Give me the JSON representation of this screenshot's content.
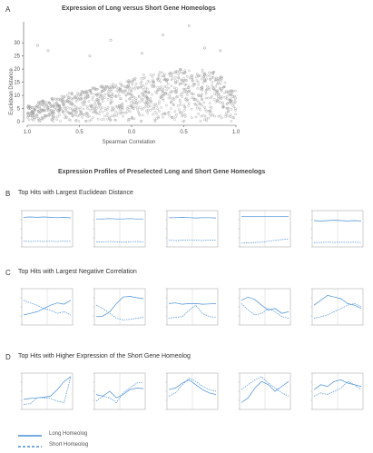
{
  "panels": [
    {
      "letter": "A",
      "title": "Expression of Long versus Short Gene Homeologs"
    },
    {
      "title": "Expression Profiles of Preselected Long and Short Gene Homeologs"
    },
    {
      "letter": "B",
      "title": "Top Hits with Largest Euclidean Distance"
    },
    {
      "letter": "C",
      "title": "Top Hits with Largest Negative Correlation"
    },
    {
      "letter": "D",
      "title": "Top Hits with Higher Expression of the Short Gene Homeolog"
    }
  ],
  "legend": {
    "long": "Long Homeolog",
    "short": "Short Homeolog",
    "long_color": "#4a90d9",
    "short_color": "#4a90d9"
  },
  "chart_data": [
    {
      "type": "scatter",
      "xlabel": "Spearman Correlation",
      "ylabel": "Euclidean Distance",
      "x_ticks": [
        "1.0",
        "0.5",
        "0.0",
        "0.5",
        "1.0"
      ],
      "y_ticks": [
        "0",
        "5",
        "10",
        "15",
        "20",
        "25",
        "30"
      ],
      "xlim": [
        -1.0,
        1.0
      ],
      "ylim": [
        0,
        38
      ],
      "grid": false,
      "marker_color": "#9a9a9a",
      "density_profile": [
        [
          -0.95,
          6
        ],
        [
          -0.85,
          8
        ],
        [
          -0.75,
          9
        ],
        [
          -0.65,
          10
        ],
        [
          -0.55,
          11
        ],
        [
          -0.45,
          12
        ],
        [
          -0.35,
          13
        ],
        [
          -0.25,
          14
        ],
        [
          -0.15,
          15
        ],
        [
          -0.05,
          16
        ],
        [
          0.05,
          17
        ],
        [
          0.15,
          18
        ],
        [
          0.25,
          19
        ],
        [
          0.35,
          19
        ],
        [
          0.45,
          20
        ],
        [
          0.55,
          20
        ],
        [
          0.65,
          20
        ],
        [
          0.75,
          19
        ],
        [
          0.85,
          17
        ],
        [
          0.95,
          12
        ]
      ],
      "outliers": [
        [
          -0.9,
          29
        ],
        [
          -0.8,
          27
        ],
        [
          -0.2,
          31
        ],
        [
          0.3,
          33
        ],
        [
          0.55,
          36.5
        ],
        [
          0.1,
          26
        ],
        [
          -0.4,
          25
        ],
        [
          0.7,
          28
        ],
        [
          0.85,
          27
        ]
      ]
    },
    {
      "type": "line",
      "group": "B",
      "line_color": "#4a90d9",
      "plots": [
        {
          "long": [
            0.85,
            0.86,
            0.85,
            0.86,
            0.85,
            0.84,
            0.85,
            0.83
          ],
          "short": [
            0.12,
            0.11,
            0.12,
            0.11,
            0.12,
            0.11,
            0.12,
            0.11
          ]
        },
        {
          "long": [
            0.8,
            0.8,
            0.81,
            0.8,
            0.8,
            0.81,
            0.8,
            0.8
          ],
          "short": [
            0.1,
            0.1,
            0.11,
            0.1,
            0.1,
            0.1,
            0.11,
            0.1
          ]
        },
        {
          "long": [
            0.84,
            0.84,
            0.85,
            0.84,
            0.83,
            0.84,
            0.84,
            0.83
          ],
          "short": [
            0.15,
            0.14,
            0.15,
            0.16,
            0.15,
            0.14,
            0.15,
            0.15
          ]
        },
        {
          "long": [
            0.88,
            0.88,
            0.87,
            0.88,
            0.88,
            0.88,
            0.87,
            0.88
          ],
          "short": [
            0.06,
            0.07,
            0.08,
            0.09,
            0.12,
            0.15,
            0.17,
            0.18
          ]
        },
        {
          "long": [
            0.75,
            0.74,
            0.75,
            0.76,
            0.75,
            0.74,
            0.75,
            0.74
          ],
          "short": [
            0.08,
            0.08,
            0.09,
            0.08,
            0.09,
            0.08,
            0.09,
            0.08
          ]
        }
      ]
    },
    {
      "type": "line",
      "group": "C",
      "line_color": "#4a90d9",
      "plots": [
        {
          "long": [
            0.25,
            0.3,
            0.35,
            0.45,
            0.55,
            0.62,
            0.58,
            0.7
          ],
          "short": [
            0.7,
            0.62,
            0.55,
            0.45,
            0.4,
            0.3,
            0.35,
            0.25
          ]
        },
        {
          "long": [
            0.2,
            0.22,
            0.35,
            0.6,
            0.8,
            0.82,
            0.78,
            0.75
          ],
          "short": [
            0.55,
            0.45,
            0.3,
            0.15,
            0.1,
            0.12,
            0.15,
            0.18
          ]
        },
        {
          "long": [
            0.6,
            0.62,
            0.58,
            0.6,
            0.6,
            0.58,
            0.59,
            0.6
          ],
          "short": [
            0.15,
            0.18,
            0.2,
            0.4,
            0.55,
            0.3,
            0.2,
            0.18
          ]
        },
        {
          "long": [
            0.7,
            0.8,
            0.72,
            0.55,
            0.4,
            0.45,
            0.3,
            0.35
          ],
          "short": [
            0.6,
            0.4,
            0.25,
            0.3,
            0.45,
            0.35,
            0.2,
            0.15
          ]
        },
        {
          "long": [
            0.55,
            0.7,
            0.85,
            0.8,
            0.75,
            0.6,
            0.55,
            0.45
          ],
          "short": [
            0.15,
            0.2,
            0.25,
            0.35,
            0.45,
            0.55,
            0.6,
            0.5
          ]
        }
      ]
    },
    {
      "type": "line",
      "group": "D",
      "line_color": "#4a90d9",
      "plots": [
        {
          "long": [
            0.25,
            0.28,
            0.3,
            0.32,
            0.35,
            0.55,
            0.8,
            0.95
          ],
          "short": [
            0.1,
            0.12,
            0.3,
            0.3,
            0.28,
            0.2,
            0.15,
            0.95
          ]
        },
        {
          "long": [
            0.4,
            0.35,
            0.5,
            0.3,
            0.4,
            0.55,
            0.6,
            0.58
          ],
          "short": [
            0.2,
            0.35,
            0.3,
            0.15,
            0.45,
            0.6,
            0.75,
            0.78
          ]
        },
        {
          "long": [
            0.55,
            0.6,
            0.75,
            0.85,
            0.7,
            0.55,
            0.45,
            0.4
          ],
          "short": [
            0.35,
            0.45,
            0.7,
            0.9,
            0.8,
            0.65,
            0.55,
            0.5
          ]
        },
        {
          "long": [
            0.15,
            0.3,
            0.6,
            0.8,
            0.7,
            0.5,
            0.65,
            0.8
          ],
          "short": [
            0.55,
            0.7,
            0.85,
            0.95,
            0.75,
            0.6,
            0.45,
            0.35
          ]
        },
        {
          "long": [
            0.55,
            0.7,
            0.65,
            0.8,
            0.85,
            0.75,
            0.7,
            0.65
          ],
          "short": [
            0.35,
            0.45,
            0.4,
            0.5,
            0.6,
            0.8,
            0.7,
            0.55
          ]
        }
      ]
    }
  ]
}
